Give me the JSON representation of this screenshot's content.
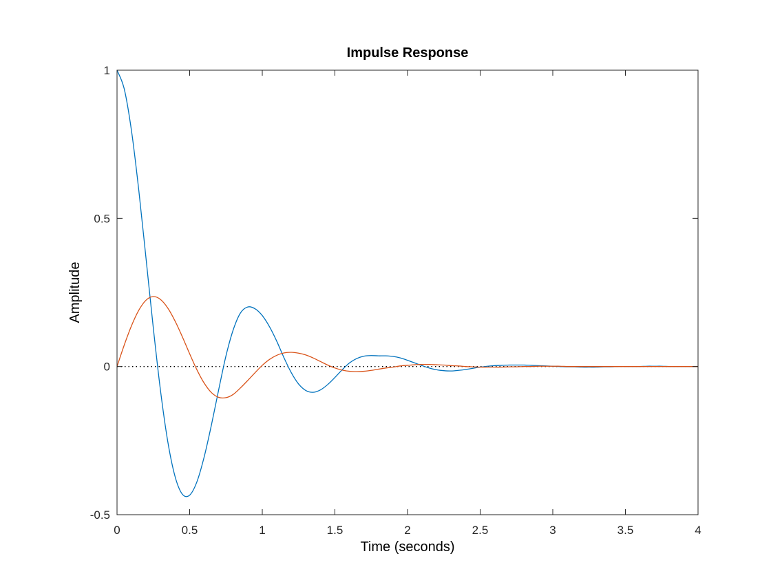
{
  "chart_data": {
    "type": "line",
    "title": "Impulse Response",
    "xlabel": "Time (seconds)",
    "ylabel": "Amplitude",
    "xlim": [
      0,
      4
    ],
    "ylim": [
      -0.5,
      1
    ],
    "xticks": [
      0,
      0.5,
      1,
      1.5,
      2,
      2.5,
      3,
      3.5,
      4
    ],
    "xtick_labels": [
      "0",
      "0.5",
      "1",
      "1.5",
      "2",
      "2.5",
      "3",
      "3.5",
      "4"
    ],
    "yticks": [
      -0.5,
      0,
      0.5,
      1
    ],
    "ytick_labels": [
      "-0.5",
      "0",
      "0.5",
      "1"
    ],
    "grid": false,
    "legend": "none",
    "zero_line": {
      "y": 0,
      "style": "dotted",
      "color": "#000000"
    },
    "series": [
      {
        "color": "#0072BD",
        "x": [
          0,
          0.05,
          0.1,
          0.15,
          0.2,
          0.25,
          0.3,
          0.35,
          0.4,
          0.45,
          0.5,
          0.55,
          0.6,
          0.65,
          0.7,
          0.75,
          0.8,
          0.85,
          0.9,
          0.95,
          1.0,
          1.05,
          1.1,
          1.15,
          1.2,
          1.25,
          1.3,
          1.35,
          1.4,
          1.45,
          1.5,
          1.55,
          1.6,
          1.65,
          1.7,
          1.75,
          1.8,
          1.85,
          1.9,
          1.95,
          2.0,
          2.05,
          2.1,
          2.15,
          2.2,
          2.25,
          2.3,
          2.35,
          2.4,
          2.45,
          2.5,
          2.55,
          2.6,
          2.65,
          2.7,
          2.75,
          2.8,
          2.85,
          2.9,
          2.95,
          3.0,
          3.05,
          3.1,
          3.15,
          3.2,
          3.25,
          3.3,
          3.35,
          3.4,
          3.45,
          3.5,
          3.55,
          3.6,
          3.65,
          3.7,
          3.75,
          3.8,
          3.85,
          3.9,
          3.95,
          4.0
        ],
        "y": [
          1.0,
          0.936,
          0.794,
          0.594,
          0.363,
          0.129,
          -0.084,
          -0.255,
          -0.372,
          -0.431,
          -0.434,
          -0.389,
          -0.305,
          -0.197,
          -0.078,
          0.036,
          0.124,
          0.181,
          0.201,
          0.195,
          0.172,
          0.134,
          0.085,
          0.029,
          -0.021,
          -0.059,
          -0.081,
          -0.087,
          -0.079,
          -0.061,
          -0.037,
          -0.011,
          0.012,
          0.027,
          0.035,
          0.037,
          0.036,
          0.036,
          0.034,
          0.029,
          0.021,
          0.012,
          0.003,
          -0.005,
          -0.011,
          -0.014,
          -0.015,
          -0.013,
          -0.01,
          -0.006,
          -0.002,
          0.001,
          0.003,
          0.004,
          0.005,
          0.005,
          0.005,
          0.004,
          0.003,
          0.002,
          0.001,
          0.0,
          -0.001,
          -0.001,
          -0.002,
          -0.002,
          -0.002,
          -0.001,
          -0.001,
          0.0,
          0.0,
          0.0,
          0.0,
          0.001,
          0.001,
          0.001,
          0.0,
          0.0,
          0.0,
          0.0,
          0.0
        ]
      },
      {
        "color": "#D95319",
        "x": [
          0,
          0.05,
          0.1,
          0.15,
          0.2,
          0.25,
          0.3,
          0.35,
          0.4,
          0.45,
          0.5,
          0.55,
          0.6,
          0.65,
          0.7,
          0.75,
          0.8,
          0.85,
          0.9,
          0.95,
          1.0,
          1.05,
          1.1,
          1.15,
          1.2,
          1.25,
          1.3,
          1.35,
          1.4,
          1.45,
          1.5,
          1.55,
          1.6,
          1.65,
          1.7,
          1.75,
          1.8,
          1.85,
          1.9,
          1.95,
          2.0,
          2.05,
          2.1,
          2.15,
          2.2,
          2.25,
          2.3,
          2.35,
          2.4,
          2.45,
          2.5,
          2.55,
          2.6,
          2.65,
          2.7,
          2.75,
          2.8,
          2.85,
          2.9,
          2.95,
          3.0,
          3.05,
          3.1,
          3.15,
          3.2,
          3.25,
          3.3,
          3.35,
          3.4,
          3.45,
          3.5,
          3.55,
          3.6,
          3.65,
          3.7,
          3.75,
          3.8,
          3.85,
          3.9,
          3.95,
          4.0
        ],
        "y": [
          0.0,
          0.073,
          0.138,
          0.19,
          0.224,
          0.236,
          0.226,
          0.197,
          0.153,
          0.1,
          0.043,
          -0.011,
          -0.056,
          -0.088,
          -0.104,
          -0.105,
          -0.094,
          -0.072,
          -0.047,
          -0.021,
          0.004,
          0.024,
          0.038,
          0.046,
          0.048,
          0.045,
          0.039,
          0.029,
          0.017,
          0.005,
          -0.005,
          -0.012,
          -0.016,
          -0.017,
          -0.016,
          -0.013,
          -0.009,
          -0.005,
          -0.002,
          0.002,
          0.004,
          0.006,
          0.007,
          0.007,
          0.006,
          0.005,
          0.003,
          0.002,
          0.0,
          -0.001,
          -0.002,
          -0.002,
          -0.002,
          -0.002,
          -0.001,
          -0.001,
          0.0,
          0.0,
          0.001,
          0.001,
          0.001,
          0.001,
          0.0,
          0.0,
          0.0,
          0.0,
          0.0,
          0.0,
          0.0,
          0.0,
          0.0,
          0.0,
          0.0,
          0.0,
          0.0,
          0.0,
          0.0,
          0.0,
          0.0,
          0.0,
          0.0
        ]
      }
    ]
  }
}
